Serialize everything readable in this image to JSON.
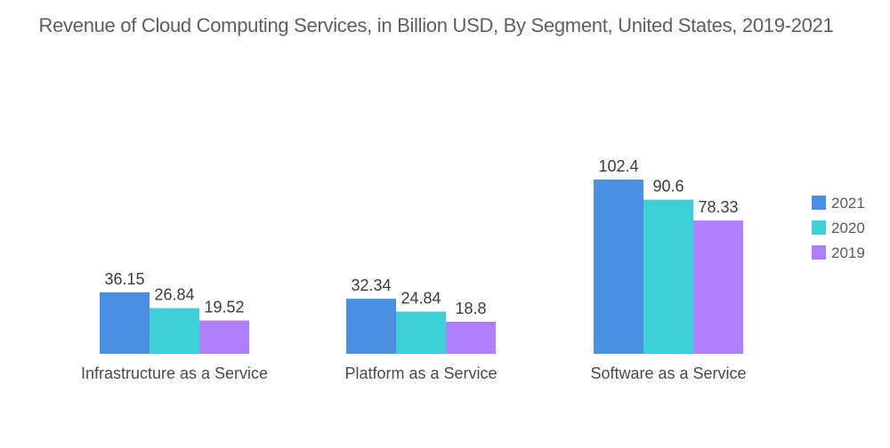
{
  "chart_data": {
    "type": "bar",
    "title": "Revenue of Cloud Computing Services, in Billion USD, By Segment, United States, 2019-2021",
    "xlabel": "",
    "ylabel": "",
    "ylim": [
      0,
      102.4
    ],
    "grid": false,
    "legend_position": "right",
    "categories": [
      "Infrastructure as a Service",
      "Platform as a Service",
      "Software as a Service"
    ],
    "series": [
      {
        "name": "2021",
        "color": "#4a8fe2",
        "values": [
          36.15,
          32.34,
          102.4
        ],
        "labels": [
          "36.15",
          "32.34",
          "102.4"
        ]
      },
      {
        "name": "2020",
        "color": "#3ecfd8",
        "values": [
          26.84,
          24.84,
          90.6
        ],
        "labels": [
          "26.84",
          "24.84",
          "90.6"
        ]
      },
      {
        "name": "2019",
        "color": "#b07ffb",
        "values": [
          19.52,
          18.8,
          78.33
        ],
        "labels": [
          "19.52",
          "18.8",
          "78.33"
        ]
      }
    ]
  }
}
